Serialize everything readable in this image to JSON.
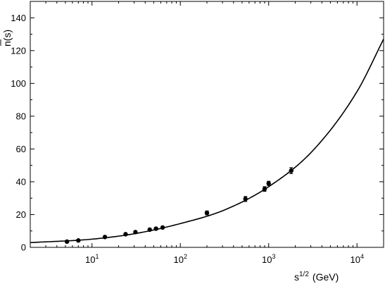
{
  "chart_data": {
    "type": "scatter",
    "title": "",
    "xlabel": "s",
    "xlabel_exponent": "1/2",
    "xlabel_unit": "(GeV)",
    "ylabel_bar": "n",
    "ylabel_rest": "(s)",
    "xscale": "log",
    "xlim": [
      2,
      20000
    ],
    "ylim": [
      0,
      150
    ],
    "grid": false,
    "legend": "none",
    "x_ticks": [
      {
        "base": "10",
        "exp": "1",
        "value": 10
      },
      {
        "base": "10",
        "exp": "2",
        "value": 100
      },
      {
        "base": "10",
        "exp": "3",
        "value": 1000
      },
      {
        "base": "10",
        "exp": "4",
        "value": 10000
      }
    ],
    "y_ticks": [
      "0",
      "20",
      "40",
      "60",
      "80",
      "100",
      "120",
      "140"
    ],
    "series": [
      {
        "kind": "points_with_errors",
        "points": [
          {
            "x": 5.2,
            "y": 3.5,
            "err": 0.3
          },
          {
            "x": 7.0,
            "y": 4.2,
            "err": 0.3
          },
          {
            "x": 14.0,
            "y": 6.3,
            "err": 0.4
          },
          {
            "x": 24.0,
            "y": 8.0,
            "err": 0.4
          },
          {
            "x": 31.0,
            "y": 9.3,
            "err": 0.4
          },
          {
            "x": 45.0,
            "y": 10.8,
            "err": 0.4
          },
          {
            "x": 53.0,
            "y": 11.4,
            "err": 0.4
          },
          {
            "x": 63.0,
            "y": 12.1,
            "err": 0.4
          },
          {
            "x": 200.0,
            "y": 21.0,
            "err": 1.2
          },
          {
            "x": 546.0,
            "y": 29.5,
            "err": 1.5
          },
          {
            "x": 900.0,
            "y": 35.6,
            "err": 1.4
          },
          {
            "x": 1000.0,
            "y": 39.0,
            "err": 1.3
          },
          {
            "x": 1800.0,
            "y": 46.8,
            "err": 1.8
          }
        ]
      },
      {
        "kind": "fit_curve",
        "points": [
          {
            "x": 2,
            "y": 2.9
          },
          {
            "x": 10,
            "y": 5.0
          },
          {
            "x": 31.6,
            "y": 8.5
          },
          {
            "x": 100,
            "y": 14.5
          },
          {
            "x": 316,
            "y": 22.8
          },
          {
            "x": 1000,
            "y": 37.0
          },
          {
            "x": 3162,
            "y": 59.0
          },
          {
            "x": 10000,
            "y": 95.0
          },
          {
            "x": 20000,
            "y": 127.0
          }
        ]
      }
    ]
  },
  "colors": {
    "line": "#000000",
    "marker": "#000000",
    "background": "#ffffff"
  }
}
